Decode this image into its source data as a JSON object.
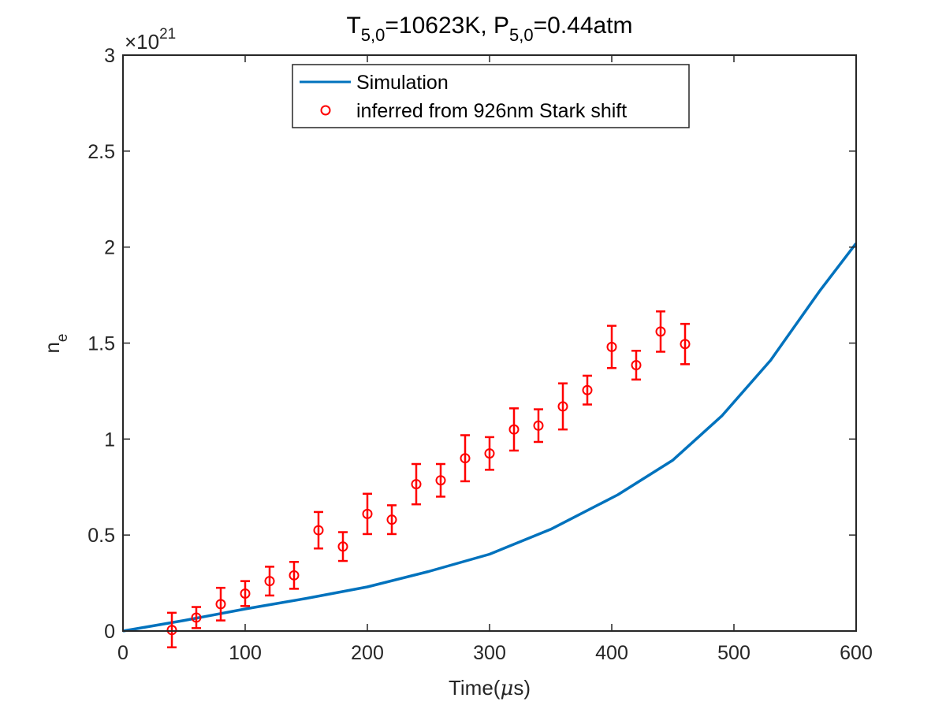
{
  "chart_data": {
    "type": "scatter",
    "title": {
      "main_1": "T",
      "sub_1": "5,0",
      "main_2": "=10623K, P",
      "sub_2": "5,0",
      "main_3": "=0.44atm"
    },
    "xlabel": "Time(",
    "xlabel_mu": "μ",
    "xlabel_end": "s)",
    "ylabel": "n",
    "ylabel_sub": "e",
    "y_exponent": {
      "base": "×10",
      "power": "21"
    },
    "xlim": [
      0,
      600
    ],
    "ylim": [
      0,
      3
    ],
    "xticks": [
      0,
      100,
      200,
      300,
      400,
      500,
      600
    ],
    "xtick_labels": [
      "0",
      "100",
      "200",
      "300",
      "400",
      "500",
      "600"
    ],
    "yticks": [
      0,
      0.5,
      1,
      1.5,
      2,
      2.5,
      3
    ],
    "ytick_labels": [
      "0",
      "0.5",
      "1",
      "1.5",
      "2",
      "2.5",
      "3"
    ],
    "grid": false,
    "legend_position": "top-center",
    "series": [
      {
        "name": "Simulation",
        "kind": "line",
        "color": "#0072BD",
        "x": [
          0,
          50,
          100,
          150,
          200,
          250,
          300,
          350,
          405,
          450,
          490,
          530,
          570,
          600
        ],
        "y": [
          0,
          0.055,
          0.115,
          0.17,
          0.23,
          0.31,
          0.4,
          0.53,
          0.71,
          0.89,
          1.12,
          1.41,
          1.77,
          2.02
        ]
      },
      {
        "name": "inferred from 926nm Stark shift",
        "kind": "errorbar",
        "color": "#FF0000",
        "x": [
          40,
          60,
          80,
          100,
          120,
          140,
          160,
          180,
          200,
          220,
          240,
          260,
          280,
          300,
          320,
          340,
          360,
          380,
          400,
          420,
          440,
          460
        ],
        "y": [
          0.005,
          0.07,
          0.14,
          0.195,
          0.26,
          0.29,
          0.525,
          0.44,
          0.61,
          0.58,
          0.765,
          0.785,
          0.9,
          0.925,
          1.05,
          1.07,
          1.17,
          1.255,
          1.48,
          1.385,
          1.56,
          1.495
        ],
        "err": [
          0.09,
          0.055,
          0.085,
          0.065,
          0.075,
          0.07,
          0.095,
          0.075,
          0.105,
          0.075,
          0.105,
          0.085,
          0.12,
          0.085,
          0.11,
          0.085,
          0.12,
          0.075,
          0.11,
          0.075,
          0.105,
          0.105
        ]
      }
    ]
  }
}
